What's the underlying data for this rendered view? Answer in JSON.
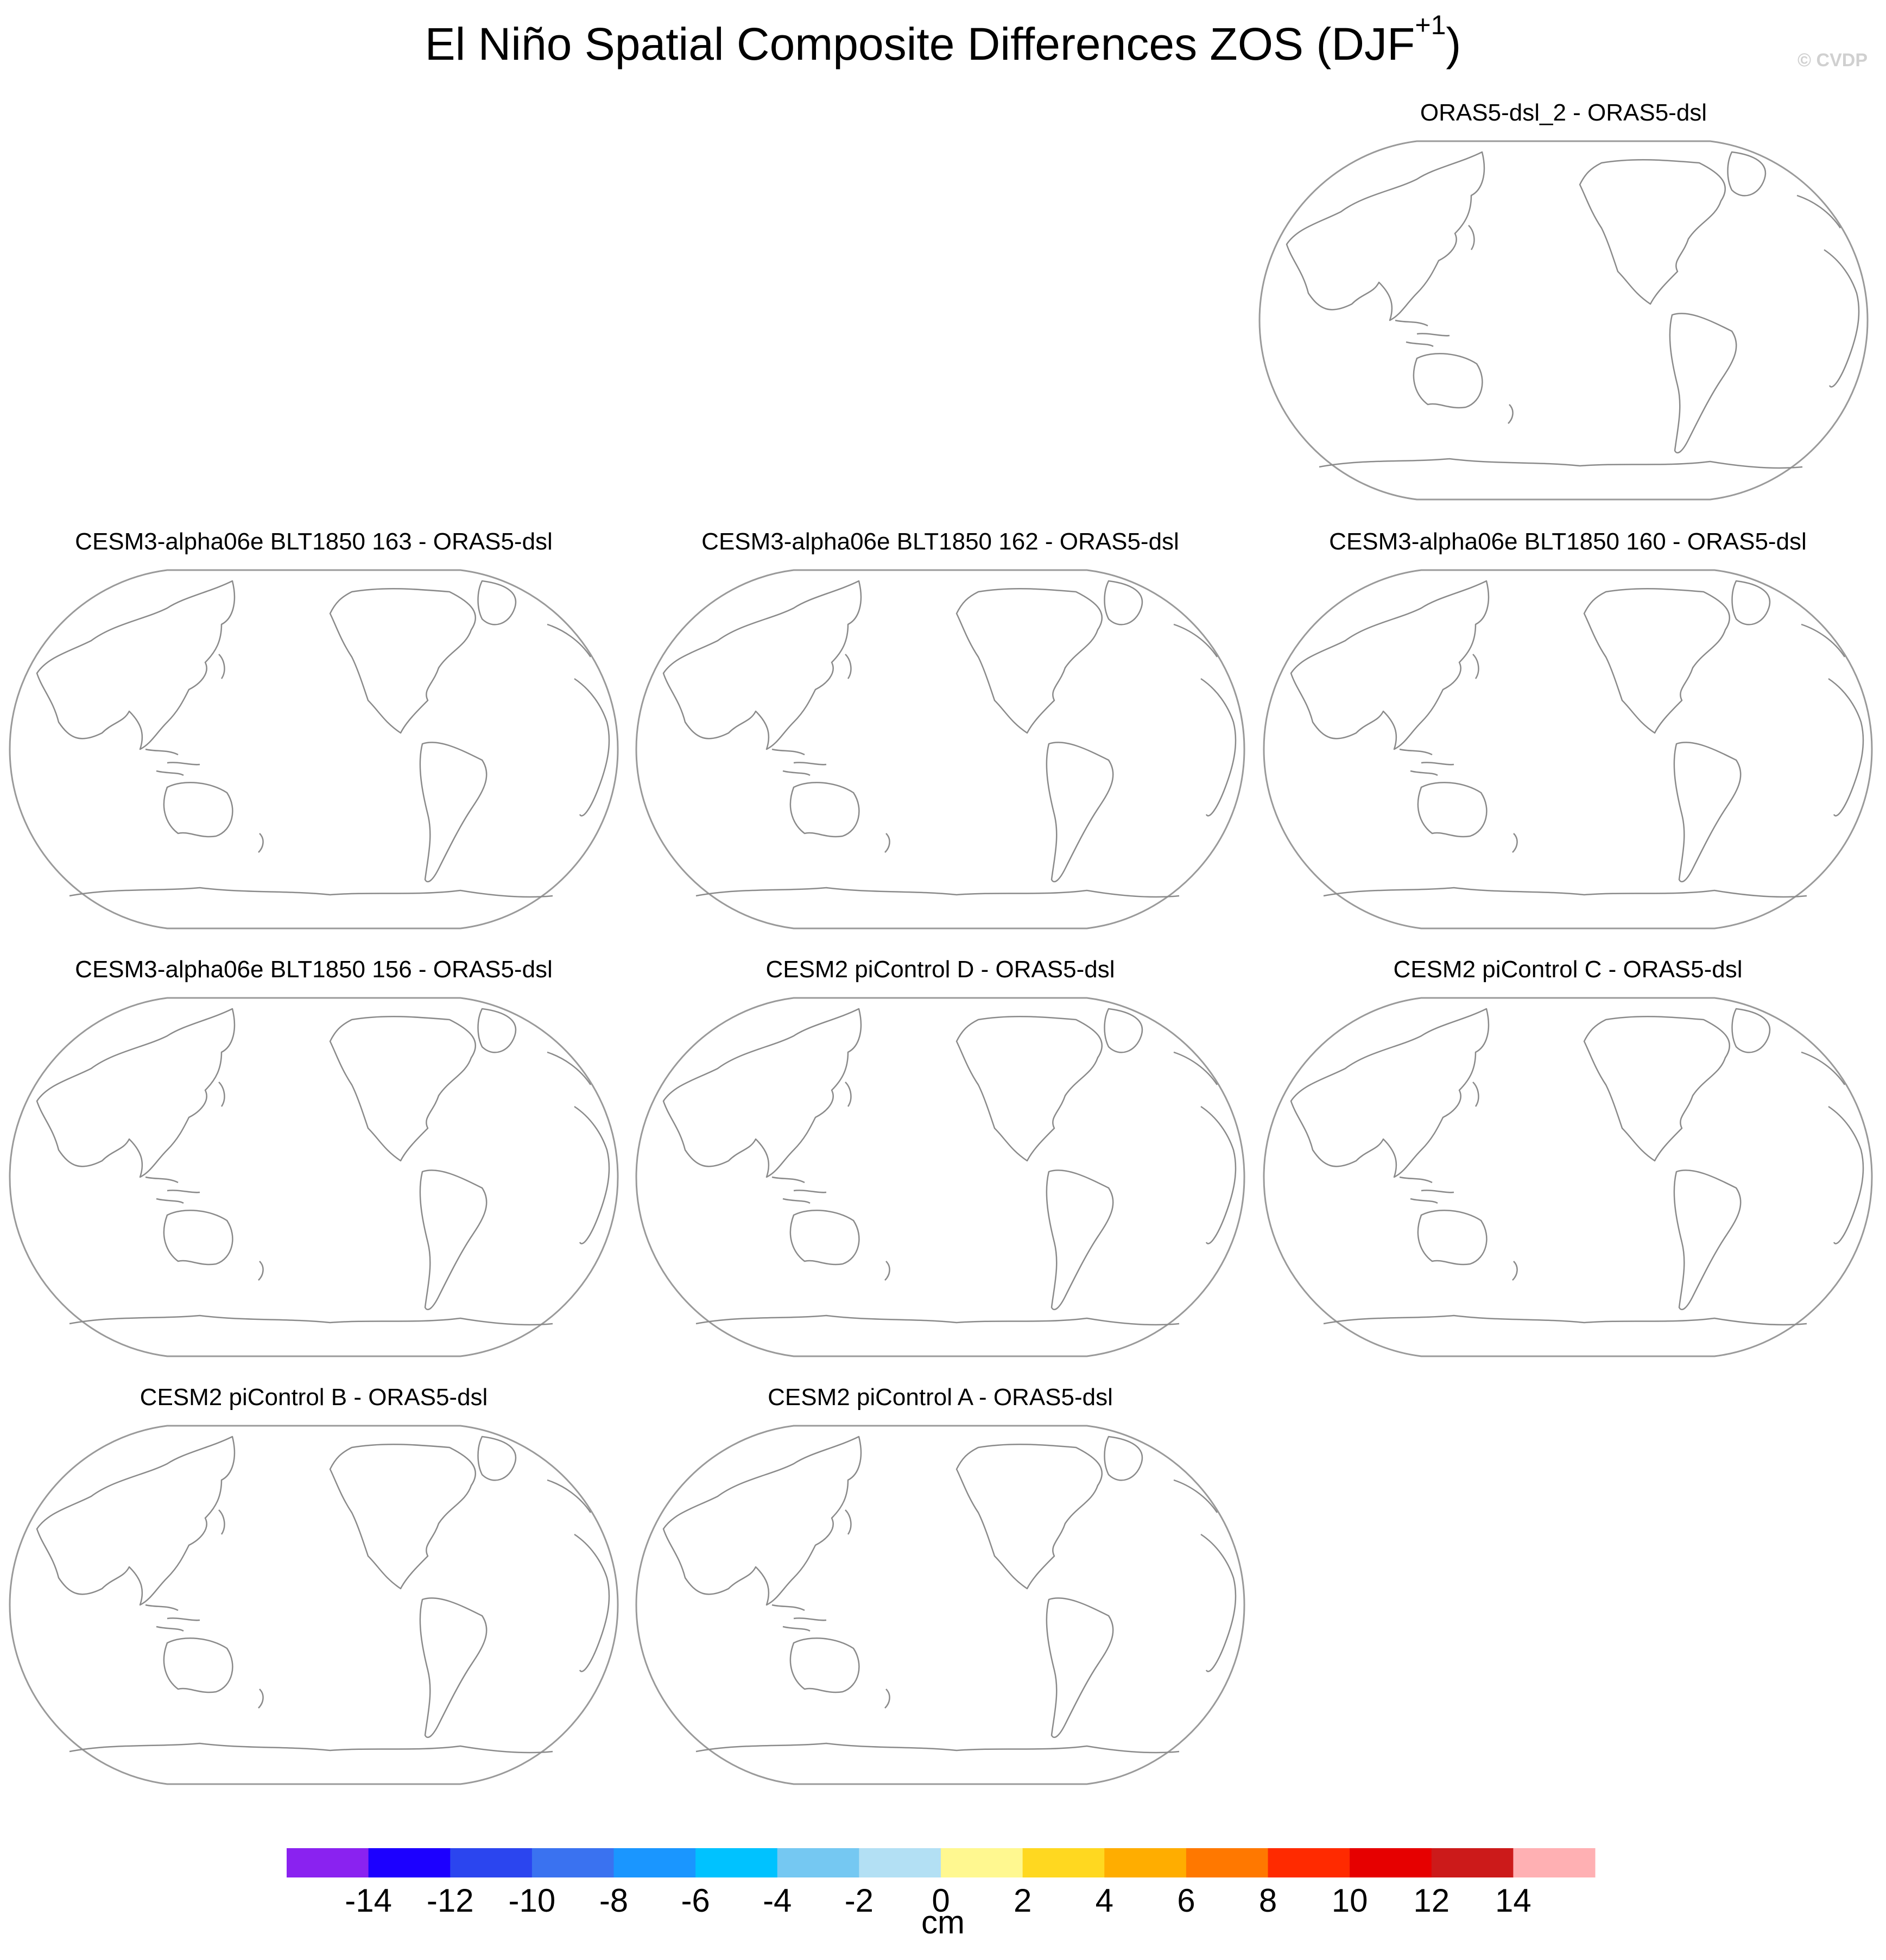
{
  "title": {
    "main": "El Niño Spatial Composite Differences ZOS (DJF",
    "superscript": "+1",
    "close": ")"
  },
  "watermark": "© CVDP",
  "panels": [
    {
      "label": "ORAS5-dsl_2 - ORAS5-dsl"
    },
    {
      "label": "CESM3-alpha06e BLT1850 163 - ORAS5-dsl"
    },
    {
      "label": "CESM3-alpha06e BLT1850 162 - ORAS5-dsl"
    },
    {
      "label": "CESM3-alpha06e BLT1850 160 - ORAS5-dsl"
    },
    {
      "label": "CESM3-alpha06e BLT1850 156 - ORAS5-dsl"
    },
    {
      "label": "CESM2 piControl D - ORAS5-dsl"
    },
    {
      "label": "CESM2 piControl C - ORAS5-dsl"
    },
    {
      "label": "CESM2 piControl B - ORAS5-dsl"
    },
    {
      "label": "CESM2 piControl A - ORAS5-dsl"
    }
  ],
  "colorbar": {
    "unit": "cm",
    "colors": [
      "#8a22f0",
      "#1c00ff",
      "#2b45ef",
      "#3a72f0",
      "#1a96ff",
      "#00c2ff",
      "#75c8f2",
      "#b3e0f4",
      "#fff890",
      "#ffd820",
      "#ffad00",
      "#ff7800",
      "#ff2a00",
      "#e60000",
      "#cc1a1a",
      "#ffb0b3"
    ],
    "tick_labels": [
      "-14",
      "-12",
      "-10",
      "-8",
      "-6",
      "-4",
      "-2",
      "0",
      "2",
      "4",
      "6",
      "8",
      "10",
      "12",
      "14"
    ]
  }
}
